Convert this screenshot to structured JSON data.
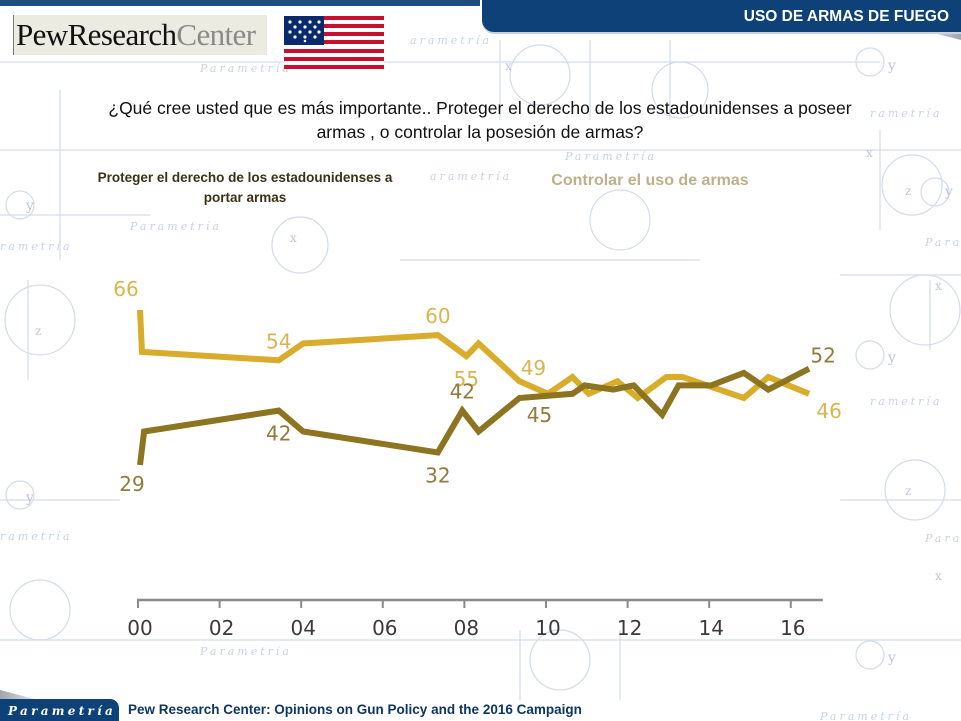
{
  "header": {
    "section_title": "USO DE ARMAS DE FUEGO",
    "logo_text_primary": "PewResearch",
    "logo_text_secondary": "Center",
    "flag_icon": "us-flag-icon"
  },
  "question": {
    "line1": "¿Qué cree usted que es más importante.. Proteger el derecho de los estadounidenses a poseer",
    "line2": "armas , o controlar la posesión de armas?"
  },
  "legend": {
    "protect_line1": "Proteger el derecho de los estadounidenses a",
    "protect_line2": "portar armas",
    "control": "Controlar el uso de armas"
  },
  "colors": {
    "protect": "#8d7420",
    "control": "#d9ac2c",
    "protect_label": "#8f7c3c",
    "control_label": "#d8b54e",
    "axis": "#8a8a8a",
    "brand_blue": "#0e4178"
  },
  "footer": {
    "brand": "Parametría",
    "source": "Pew Research Center:  Opinions on Gun Policy and the 2016 Campaign"
  },
  "chart_data": {
    "type": "line",
    "title": "",
    "xlabel": "",
    "ylabel": "",
    "xlim": [
      2000,
      2017
    ],
    "ylim": [
      25,
      70
    ],
    "grid": false,
    "legend_placement": "top",
    "x_ticks": [
      2000,
      2002,
      2004,
      2006,
      2008,
      2010,
      2012,
      2014,
      2016
    ],
    "x_tick_labels": [
      "00",
      "02",
      "04",
      "06",
      "08",
      "10",
      "12",
      "14",
      "16"
    ],
    "series": [
      {
        "name": "Controlar el uso de armas",
        "key": "control",
        "points": [
          [
            2000.0,
            66
          ],
          [
            2000.05,
            56
          ],
          [
            2003.4,
            54
          ],
          [
            2004.0,
            58
          ],
          [
            2007.3,
            60
          ],
          [
            2008.0,
            55
          ],
          [
            2008.3,
            58
          ],
          [
            2009.3,
            49
          ],
          [
            2010.0,
            46
          ],
          [
            2010.6,
            50
          ],
          [
            2011.0,
            46
          ],
          [
            2011.7,
            49
          ],
          [
            2012.2,
            45
          ],
          [
            2012.9,
            50
          ],
          [
            2013.3,
            50
          ],
          [
            2014.8,
            45
          ],
          [
            2015.4,
            50
          ],
          [
            2016.4,
            46
          ]
        ],
        "labels": [
          {
            "x": 2000.0,
            "y": 66,
            "text": "66",
            "pos": "above-left"
          },
          {
            "x": 2003.4,
            "y": 54,
            "text": "54",
            "pos": "above"
          },
          {
            "x": 2007.3,
            "y": 60,
            "text": "60",
            "pos": "above"
          },
          {
            "x": 2008.0,
            "y": 55,
            "text": "55",
            "pos": "below"
          },
          {
            "x": 2009.3,
            "y": 49,
            "text": "49",
            "pos": "above-right"
          },
          {
            "x": 2016.4,
            "y": 46,
            "text": "46",
            "pos": "below-right"
          }
        ]
      },
      {
        "name": "Proteger el derecho de los estadounidenses a portar armas",
        "key": "protect",
        "points": [
          [
            2000.0,
            29
          ],
          [
            2000.1,
            37
          ],
          [
            2003.4,
            42
          ],
          [
            2004.0,
            37
          ],
          [
            2007.3,
            32
          ],
          [
            2007.9,
            42
          ],
          [
            2008.3,
            37
          ],
          [
            2009.3,
            45
          ],
          [
            2010.6,
            46
          ],
          [
            2010.9,
            48
          ],
          [
            2011.6,
            47
          ],
          [
            2012.1,
            48
          ],
          [
            2012.8,
            41
          ],
          [
            2013.2,
            48
          ],
          [
            2014.0,
            48
          ],
          [
            2014.8,
            51
          ],
          [
            2015.4,
            47
          ],
          [
            2016.4,
            52
          ]
        ],
        "labels": [
          {
            "x": 2000.0,
            "y": 29,
            "text": "29",
            "pos": "below-left"
          },
          {
            "x": 2003.4,
            "y": 42,
            "text": "42",
            "pos": "below"
          },
          {
            "x": 2007.3,
            "y": 32,
            "text": "32",
            "pos": "below"
          },
          {
            "x": 2007.9,
            "y": 42,
            "text": "42",
            "pos": "above"
          },
          {
            "x": 2009.3,
            "y": 45,
            "text": "45",
            "pos": "below-right"
          },
          {
            "x": 2016.4,
            "y": 52,
            "text": "52",
            "pos": "above-right"
          }
        ]
      }
    ]
  }
}
